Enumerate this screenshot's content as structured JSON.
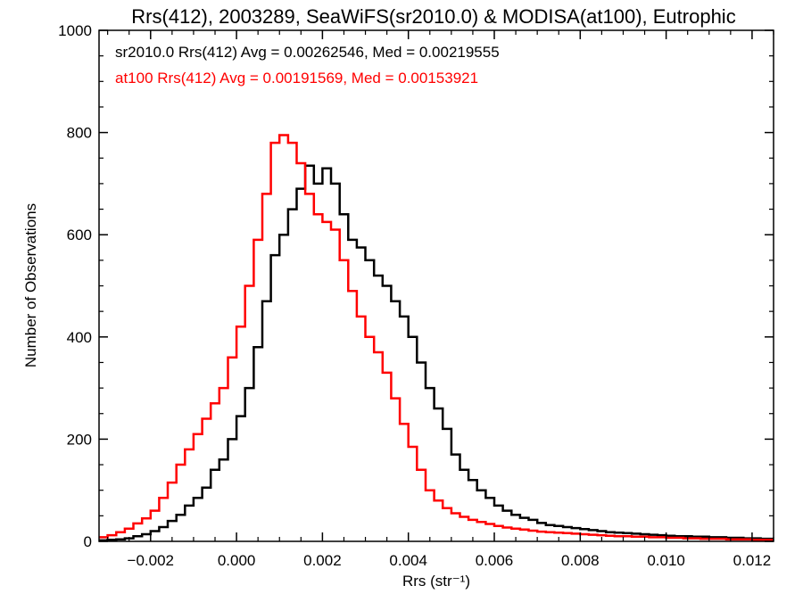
{
  "chart_data": {
    "type": "line",
    "title": "Rrs(412), 2003289, SeaWiFS(sr2010.0) & MODISA(at100), Eutrophic",
    "xlabel": "Rrs (str⁻¹)",
    "ylabel": "Number of Observations",
    "xlim": [
      -0.0032,
      0.0125
    ],
    "ylim": [
      0,
      1000
    ],
    "grid": false,
    "xticks": [
      -0.002,
      0.0,
      0.002,
      0.004,
      0.006,
      0.008,
      0.01,
      0.012
    ],
    "xtick_labels": [
      "−0.002",
      "0.000",
      "0.002",
      "0.004",
      "0.006",
      "0.008",
      "0.010",
      "0.012"
    ],
    "yticks": [
      0,
      200,
      400,
      600,
      800,
      1000
    ],
    "ytick_labels": [
      "0",
      "200",
      "400",
      "600",
      "800",
      "1000"
    ],
    "annotations": [
      {
        "text": "sr2010.0 Rrs(412) Avg = 0.00262546, Med = 0.00219555",
        "color": "#000000"
      },
      {
        "text": "at100 Rrs(412) Avg = 0.00191569, Med = 0.00153921",
        "color": "#ff0000"
      }
    ],
    "series": [
      {
        "color": "#000000",
        "x": [
          -0.0032,
          -0.003,
          -0.0028,
          -0.0026,
          -0.0024,
          -0.0022,
          -0.002,
          -0.0018,
          -0.0016,
          -0.0014,
          -0.0012,
          -0.001,
          -0.0008,
          -0.0006,
          -0.0004,
          -0.0002,
          0.0,
          0.0002,
          0.0004,
          0.0006,
          0.0008,
          0.001,
          0.0012,
          0.0014,
          0.0016,
          0.0018,
          0.002,
          0.0022,
          0.0024,
          0.0026,
          0.0028,
          0.003,
          0.0032,
          0.0034,
          0.0036,
          0.0038,
          0.004,
          0.0042,
          0.0044,
          0.0046,
          0.0048,
          0.005,
          0.0052,
          0.0054,
          0.0056,
          0.0058,
          0.006,
          0.0062,
          0.0064,
          0.0066,
          0.0068,
          0.007,
          0.0072,
          0.0074,
          0.0076,
          0.0078,
          0.008,
          0.0082,
          0.0084,
          0.0086,
          0.0088,
          0.009,
          0.0092,
          0.0094,
          0.0096,
          0.0098,
          0.01,
          0.0102,
          0.0104,
          0.0106,
          0.0108,
          0.011,
          0.0112,
          0.0114,
          0.0116,
          0.0118,
          0.012,
          0.0122,
          0.0124
        ],
        "values": [
          2,
          3,
          4,
          6,
          10,
          14,
          20,
          28,
          40,
          52,
          70,
          85,
          105,
          140,
          160,
          200,
          245,
          300,
          380,
          470,
          560,
          600,
          650,
          690,
          735,
          700,
          730,
          700,
          640,
          590,
          575,
          550,
          520,
          500,
          470,
          440,
          400,
          350,
          300,
          260,
          220,
          170,
          140,
          120,
          100,
          85,
          70,
          60,
          52,
          46,
          42,
          36,
          32,
          30,
          28,
          26,
          24,
          22,
          20,
          18,
          17,
          16,
          15,
          14,
          13,
          12,
          11,
          10,
          10,
          9,
          9,
          8,
          8,
          7,
          7,
          6,
          6,
          5,
          5
        ]
      },
      {
        "color": "#ff0000",
        "x": [
          -0.0032,
          -0.003,
          -0.0028,
          -0.0026,
          -0.0024,
          -0.0022,
          -0.002,
          -0.0018,
          -0.0016,
          -0.0014,
          -0.0012,
          -0.001,
          -0.0008,
          -0.0006,
          -0.0004,
          -0.0002,
          0.0,
          0.0002,
          0.0004,
          0.0006,
          0.0008,
          0.001,
          0.0012,
          0.0014,
          0.0016,
          0.0018,
          0.002,
          0.0022,
          0.0024,
          0.0026,
          0.0028,
          0.003,
          0.0032,
          0.0034,
          0.0036,
          0.0038,
          0.004,
          0.0042,
          0.0044,
          0.0046,
          0.0048,
          0.005,
          0.0052,
          0.0054,
          0.0056,
          0.0058,
          0.006,
          0.0062,
          0.0064,
          0.0066,
          0.0068,
          0.007,
          0.0072,
          0.0074,
          0.0076,
          0.0078,
          0.008,
          0.0082,
          0.0084,
          0.0086,
          0.0088,
          0.009,
          0.0092,
          0.0094,
          0.0096,
          0.0098,
          0.01,
          0.0102,
          0.0104,
          0.0106,
          0.0108,
          0.011,
          0.0112,
          0.0114,
          0.0116,
          0.0118,
          0.012,
          0.0122,
          0.0124
        ],
        "values": [
          8,
          12,
          18,
          25,
          35,
          45,
          60,
          85,
          115,
          150,
          180,
          210,
          240,
          270,
          300,
          360,
          420,
          500,
          590,
          680,
          780,
          795,
          780,
          740,
          680,
          640,
          625,
          610,
          550,
          490,
          440,
          400,
          370,
          330,
          280,
          230,
          185,
          140,
          100,
          80,
          65,
          55,
          48,
          42,
          38,
          34,
          30,
          27,
          25,
          23,
          21,
          19,
          18,
          17,
          16,
          15,
          14,
          13,
          12,
          11,
          10,
          10,
          9,
          9,
          8,
          8,
          7,
          7,
          6,
          6,
          5,
          5,
          5,
          4,
          4,
          4,
          3,
          3,
          3
        ]
      }
    ]
  }
}
